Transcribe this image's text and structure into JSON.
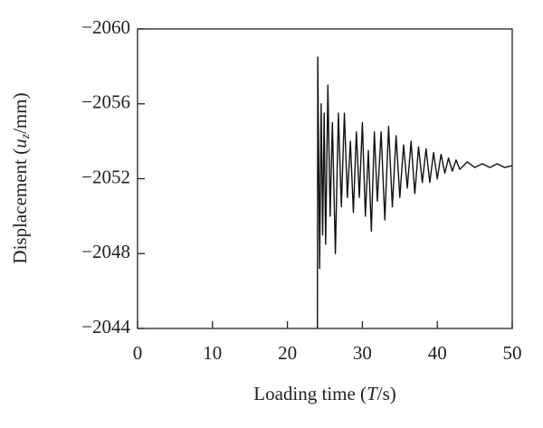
{
  "chart_data": {
    "type": "line",
    "xlabel": [
      "Loading time (",
      "T",
      "/s)"
    ],
    "ylabel": [
      "Displacement (",
      "u",
      "z",
      "/mm)"
    ],
    "x": [
      24.0,
      24.05,
      24.3,
      24.5,
      24.7,
      24.9,
      25.1,
      25.4,
      25.7,
      26.0,
      26.4,
      26.8,
      27.2,
      27.6,
      28.0,
      28.4,
      28.8,
      29.2,
      29.6,
      30.0,
      30.4,
      30.8,
      31.2,
      31.6,
      32.0,
      32.5,
      33.0,
      33.5,
      34.0,
      34.5,
      35.0,
      35.5,
      36.0,
      36.5,
      37.0,
      37.5,
      38.0,
      38.5,
      39.0,
      39.5,
      40.0,
      40.5,
      41.0,
      41.5,
      42.0,
      42.5,
      43.0,
      44,
      45,
      46,
      47,
      48,
      49,
      50
    ],
    "series": [
      {
        "color": "#111111",
        "values": [
          -2044,
          -2058.5,
          -2047.2,
          -2056,
          -2049,
          -2055.5,
          -2048.5,
          -2057,
          -2050,
          -2055,
          -2048,
          -2055.5,
          -2050.5,
          -2055.5,
          -2051,
          -2054,
          -2050.2,
          -2054.5,
          -2051,
          -2055,
          -2050,
          -2053.5,
          -2049.2,
          -2054.5,
          -2050.8,
          -2054.5,
          -2049.8,
          -2054.8,
          -2050.5,
          -2054.3,
          -2051,
          -2053.8,
          -2051.5,
          -2054,
          -2051.2,
          -2053.7,
          -2051.8,
          -2053.6,
          -2051.8,
          -2053.4,
          -2052,
          -2053.3,
          -2052.3,
          -2053.1,
          -2052.4,
          -2053,
          -2052.5,
          -2052.9,
          -2052.6,
          -2052.8,
          -2052.6,
          -2052.8,
          -2052.6,
          -2052.7
        ]
      }
    ],
    "xlim": [
      0,
      50
    ],
    "xticks": [
      0,
      10,
      20,
      30,
      40,
      50
    ],
    "ylim": [
      -2044,
      -2060
    ],
    "yticks": [
      {
        "value": -2060,
        "label": "−2060"
      },
      {
        "value": -2056,
        "label": "−2056"
      },
      {
        "value": -2052,
        "label": "−2052"
      },
      {
        "value": -2048,
        "label": "−2048"
      },
      {
        "value": -2044,
        "label": "−2044"
      }
    ],
    "grid": false
  }
}
